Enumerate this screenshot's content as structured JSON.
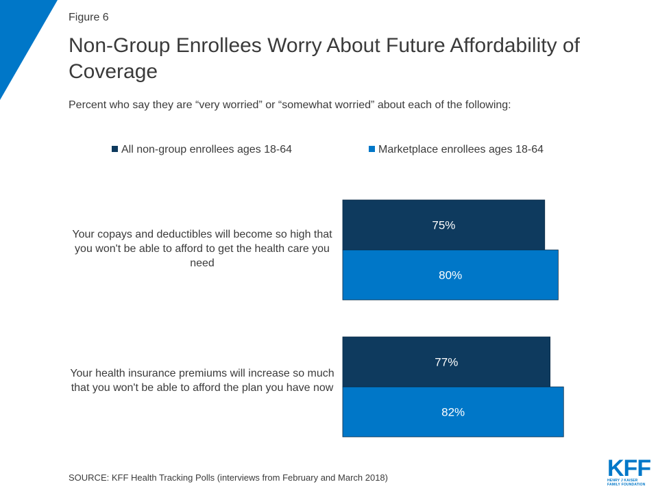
{
  "figure_label": "Figure 6",
  "title": "Non-Group Enrollees Worry About Future Affordability of Coverage",
  "subtitle": "Percent who say they are “very worried” or “somewhat worried” about each of the following:",
  "source": "SOURCE: KFF Health Tracking Polls (interviews from February and March 2018)",
  "logo": {
    "text": "KFF",
    "subtext_line1": "HENRY J KAISER",
    "subtext_line2": "FAMILY FOUNDATION"
  },
  "colors": {
    "series_1": "#0e3a5e",
    "series_2": "#0077c8",
    "accent_corner": "#0077c8",
    "bar_label": "#ffffff"
  },
  "chart_data": {
    "type": "bar",
    "orientation": "horizontal",
    "categories": [
      "Your copays and deductibles will become so high that you won't be able to afford to get the health care you need",
      "Your health insurance premiums will increase so much that you won't be able to afford the plan you have now"
    ],
    "series": [
      {
        "name": "All non-group enrollees ages 18-64",
        "values": [
          75,
          77
        ],
        "labels": [
          "75%",
          "77%"
        ]
      },
      {
        "name": "Marketplace enrollees ages 18-64",
        "values": [
          80,
          82
        ],
        "labels": [
          "80%",
          "82%"
        ]
      }
    ],
    "xlim": [
      0,
      100
    ],
    "grid": false,
    "legend_position": "top"
  }
}
